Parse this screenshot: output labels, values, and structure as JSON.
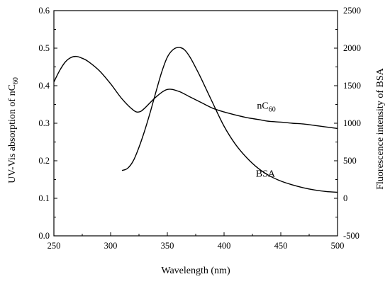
{
  "chart_data": {
    "type": "line",
    "xlabel": "Wavelength (nm)",
    "ylabel_left": "UV-Vis absorption of nC",
    "ylabel_left_sub": "60",
    "ylabel_right": "Fluorescence intensity of BSA",
    "xlim": [
      250,
      500
    ],
    "ylim_left": [
      0.0,
      0.6
    ],
    "ylim_right": [
      -500,
      2500
    ],
    "x_ticks": [
      "250",
      "300",
      "350",
      "400",
      "450",
      "500"
    ],
    "y_left_ticks": [
      "0.0",
      "0.1",
      "0.2",
      "0.3",
      "0.4",
      "0.5",
      "0.6"
    ],
    "y_right_ticks": [
      "-500",
      "0",
      "500",
      "1000",
      "1500",
      "2000",
      "2500"
    ],
    "series": [
      {
        "name": "nC",
        "name_sub": "60",
        "axis": "left",
        "x": [
          250,
          255,
          260,
          265,
          270,
          275,
          280,
          290,
          300,
          310,
          320,
          325,
          330,
          340,
          350,
          360,
          370,
          380,
          390,
          400,
          410,
          420,
          430,
          440,
          450,
          460,
          470,
          480,
          490,
          500
        ],
        "y": [
          0.41,
          0.44,
          0.463,
          0.475,
          0.478,
          0.473,
          0.465,
          0.44,
          0.405,
          0.365,
          0.335,
          0.33,
          0.34,
          0.37,
          0.39,
          0.385,
          0.37,
          0.355,
          0.34,
          0.33,
          0.322,
          0.315,
          0.31,
          0.305,
          0.303,
          0.3,
          0.298,
          0.294,
          0.29,
          0.286
        ]
      },
      {
        "name": "BSA",
        "axis": "right",
        "x": [
          310,
          315,
          320,
          325,
          330,
          335,
          340,
          345,
          350,
          355,
          360,
          365,
          370,
          375,
          380,
          390,
          400,
          410,
          420,
          430,
          440,
          450,
          460,
          470,
          480,
          490,
          500
        ],
        "y": [
          370,
          400,
          500,
          680,
          900,
          1150,
          1420,
          1680,
          1880,
          1980,
          2010,
          1980,
          1880,
          1740,
          1590,
          1270,
          960,
          720,
          540,
          400,
          300,
          230,
          180,
          140,
          110,
          90,
          80
        ]
      }
    ]
  }
}
